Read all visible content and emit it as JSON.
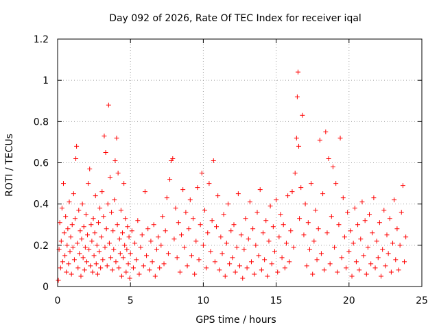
{
  "chart_data": {
    "type": "scatter",
    "title": "Day 092 of 2026, Rate Of TEC Index for receiver iqal",
    "xlabel": "GPS time / hours",
    "ylabel": "ROTI / TECUs",
    "xlim": [
      0,
      25
    ],
    "ylim": [
      0,
      1.2
    ],
    "xticks": [
      "0",
      "5",
      "10",
      "15",
      "20",
      "25"
    ],
    "yticks": [
      "0",
      "0.2",
      "0.4",
      "0.6",
      "0.8",
      "1",
      "1.2"
    ],
    "xtick_values": [
      0,
      5,
      10,
      15,
      20,
      25
    ],
    "ytick_values": [
      0,
      0.2,
      0.4,
      0.6,
      0.8,
      1.0,
      1.2
    ],
    "grid": true,
    "marker": "+",
    "color": "#ff0000",
    "series": [
      {
        "name": "ROTI",
        "points": [
          [
            0.05,
            0.03
          ],
          [
            0.1,
            0.18
          ],
          [
            0.15,
            0.31
          ],
          [
            0.2,
            0.09
          ],
          [
            0.25,
            0.22
          ],
          [
            0.3,
            0.38
          ],
          [
            0.35,
            0.12
          ],
          [
            0.4,
            0.5
          ],
          [
            0.45,
            0.26
          ],
          [
            0.5,
            0.15
          ],
          [
            0.55,
            0.34
          ],
          [
            0.6,
            0.07
          ],
          [
            0.65,
            0.2
          ],
          [
            0.7,
            0.28
          ],
          [
            0.75,
            0.11
          ],
          [
            0.8,
            0.41
          ],
          [
            0.85,
            0.17
          ],
          [
            0.9,
            0.24
          ],
          [
            0.95,
            0.06
          ],
          [
            1.0,
            0.3
          ],
          [
            1.05,
            0.19
          ],
          [
            1.1,
            0.45
          ],
          [
            1.15,
            0.13
          ],
          [
            1.2,
            0.33
          ],
          [
            1.25,
            0.62
          ],
          [
            1.3,
            0.68
          ],
          [
            1.35,
            0.21
          ],
          [
            1.4,
            0.09
          ],
          [
            1.45,
            0.37
          ],
          [
            1.5,
            0.16
          ],
          [
            1.55,
            0.27
          ],
          [
            1.6,
            0.05
          ],
          [
            1.65,
            0.23
          ],
          [
            1.7,
            0.4
          ],
          [
            1.75,
            0.14
          ],
          [
            1.8,
            0.29
          ],
          [
            1.85,
            0.08
          ],
          [
            1.9,
            0.19
          ],
          [
            1.95,
            0.35
          ],
          [
            2.0,
            0.12
          ],
          [
            2.05,
            0.25
          ],
          [
            2.1,
            0.5
          ],
          [
            2.15,
            0.18
          ],
          [
            2.2,
            0.57
          ],
          [
            2.25,
            0.1
          ],
          [
            2.3,
            0.3
          ],
          [
            2.35,
            0.22
          ],
          [
            2.4,
            0.07
          ],
          [
            2.45,
            0.33
          ],
          [
            2.5,
            0.15
          ],
          [
            2.55,
            0.26
          ],
          [
            2.6,
            0.44
          ],
          [
            2.65,
            0.11
          ],
          [
            2.7,
            0.2
          ],
          [
            2.75,
            0.06
          ],
          [
            2.8,
            0.31
          ],
          [
            2.85,
            0.17
          ],
          [
            2.9,
            0.38
          ],
          [
            2.95,
            0.09
          ],
          [
            3.0,
            0.24
          ],
          [
            3.05,
            0.46
          ],
          [
            3.1,
            0.13
          ],
          [
            3.15,
            0.34
          ],
          [
            3.2,
            0.73
          ],
          [
            3.25,
            0.19
          ],
          [
            3.3,
            0.65
          ],
          [
            3.35,
            0.28
          ],
          [
            3.4,
            0.1
          ],
          [
            3.45,
            0.4
          ],
          [
            3.5,
            0.88
          ],
          [
            3.55,
            0.21
          ],
          [
            3.6,
            0.53
          ],
          [
            3.65,
            0.14
          ],
          [
            3.7,
            0.36
          ],
          [
            3.75,
            0.08
          ],
          [
            3.8,
            0.27
          ],
          [
            3.85,
            0.18
          ],
          [
            3.9,
            0.42
          ],
          [
            3.95,
            0.61
          ],
          [
            4.0,
            0.12
          ],
          [
            4.05,
            0.72
          ],
          [
            4.1,
            0.3
          ],
          [
            4.15,
            0.55
          ],
          [
            4.2,
            0.09
          ],
          [
            4.25,
            0.23
          ],
          [
            4.3,
            0.16
          ],
          [
            4.35,
            0.37
          ],
          [
            4.4,
            0.05
          ],
          [
            4.45,
            0.26
          ],
          [
            4.5,
            0.14
          ],
          [
            4.55,
            0.5
          ],
          [
            4.6,
            0.2
          ],
          [
            4.65,
            0.33
          ],
          [
            4.7,
            0.07
          ],
          [
            4.75,
            0.18
          ],
          [
            4.8,
            0.29
          ],
          [
            4.85,
            0.11
          ],
          [
            4.9,
            0.24
          ],
          [
            4.95,
            0.04
          ],
          [
            5.0,
            0.16
          ],
          [
            5.1,
            0.27
          ],
          [
            5.2,
            0.09
          ],
          [
            5.3,
            0.21
          ],
          [
            5.4,
            0.13
          ],
          [
            5.5,
            0.32
          ],
          [
            5.6,
            0.06
          ],
          [
            5.7,
            0.19
          ],
          [
            5.8,
            0.25
          ],
          [
            5.9,
            0.1
          ],
          [
            6.0,
            0.46
          ],
          [
            6.1,
            0.15
          ],
          [
            6.2,
            0.28
          ],
          [
            6.3,
            0.08
          ],
          [
            6.4,
            0.22
          ],
          [
            6.5,
            0.12
          ],
          [
            6.6,
            0.3
          ],
          [
            6.7,
            0.05
          ],
          [
            6.8,
            0.18
          ],
          [
            6.9,
            0.24
          ],
          [
            7.0,
            0.09
          ],
          [
            7.1,
            0.2
          ],
          [
            7.2,
            0.34
          ],
          [
            7.3,
            0.11
          ],
          [
            7.4,
            0.27
          ],
          [
            7.5,
            0.43
          ],
          [
            7.6,
            0.16
          ],
          [
            7.7,
            0.52
          ],
          [
            7.8,
            0.61
          ],
          [
            7.9,
            0.62
          ],
          [
            8.0,
            0.23
          ],
          [
            8.1,
            0.38
          ],
          [
            8.2,
            0.14
          ],
          [
            8.3,
            0.31
          ],
          [
            8.4,
            0.07
          ],
          [
            8.5,
            0.25
          ],
          [
            8.6,
            0.47
          ],
          [
            8.7,
            0.19
          ],
          [
            8.8,
            0.36
          ],
          [
            8.9,
            0.1
          ],
          [
            9.0,
            0.28
          ],
          [
            9.1,
            0.42
          ],
          [
            9.2,
            0.15
          ],
          [
            9.3,
            0.33
          ],
          [
            9.4,
            0.06
          ],
          [
            9.5,
            0.22
          ],
          [
            9.6,
            0.48
          ],
          [
            9.7,
            0.13
          ],
          [
            9.8,
            0.3
          ],
          [
            9.9,
            0.55
          ],
          [
            10.0,
            0.2
          ],
          [
            10.1,
            0.37
          ],
          [
            10.2,
            0.09
          ],
          [
            10.3,
            0.26
          ],
          [
            10.4,
            0.5
          ],
          [
            10.5,
            0.17
          ],
          [
            10.6,
            0.32
          ],
          [
            10.7,
            0.61
          ],
          [
            10.8,
            0.12
          ],
          [
            10.9,
            0.29
          ],
          [
            11.0,
            0.44
          ],
          [
            11.1,
            0.08
          ],
          [
            11.2,
            0.24
          ],
          [
            11.3,
            0.16
          ],
          [
            11.4,
            0.35
          ],
          [
            11.5,
            0.05
          ],
          [
            11.6,
            0.21
          ],
          [
            11.7,
            0.4
          ],
          [
            11.8,
            0.11
          ],
          [
            11.9,
            0.27
          ],
          [
            12.0,
            0.14
          ],
          [
            12.1,
            0.3
          ],
          [
            12.2,
            0.07
          ],
          [
            12.3,
            0.19
          ],
          [
            12.4,
            0.45
          ],
          [
            12.5,
            0.1
          ],
          [
            12.6,
            0.25
          ],
          [
            12.7,
            0.04
          ],
          [
            12.8,
            0.18
          ],
          [
            12.9,
            0.33
          ],
          [
            13.0,
            0.09
          ],
          [
            13.1,
            0.23
          ],
          [
            13.2,
            0.41
          ],
          [
            13.3,
            0.12
          ],
          [
            13.4,
            0.28
          ],
          [
            13.5,
            0.06
          ],
          [
            13.6,
            0.2
          ],
          [
            13.7,
            0.36
          ],
          [
            13.8,
            0.15
          ],
          [
            13.9,
            0.47
          ],
          [
            14.0,
            0.08
          ],
          [
            14.1,
            0.26
          ],
          [
            14.2,
            0.13
          ],
          [
            14.3,
            0.32
          ],
          [
            14.4,
            0.05
          ],
          [
            14.5,
            0.22
          ],
          [
            14.6,
            0.39
          ],
          [
            14.7,
            0.11
          ],
          [
            14.8,
            0.29
          ],
          [
            14.9,
            0.17
          ],
          [
            15.0,
            0.42
          ],
          [
            15.1,
            0.07
          ],
          [
            15.2,
            0.24
          ],
          [
            15.3,
            0.35
          ],
          [
            15.4,
            0.14
          ],
          [
            15.5,
            0.3
          ],
          [
            15.6,
            0.09
          ],
          [
            15.7,
            0.21
          ],
          [
            15.8,
            0.44
          ],
          [
            15.9,
            0.12
          ],
          [
            16.0,
            0.27
          ],
          [
            16.1,
            0.46
          ],
          [
            16.2,
            0.19
          ],
          [
            16.3,
            0.55
          ],
          [
            16.4,
            0.72
          ],
          [
            16.45,
            0.92
          ],
          [
            16.5,
            1.04
          ],
          [
            16.55,
            0.68
          ],
          [
            16.6,
            0.33
          ],
          [
            16.7,
            0.48
          ],
          [
            16.8,
            0.83
          ],
          [
            16.9,
            0.25
          ],
          [
            17.0,
            0.4
          ],
          [
            17.1,
            0.1
          ],
          [
            17.2,
            0.31
          ],
          [
            17.3,
            0.18
          ],
          [
            17.4,
            0.5
          ],
          [
            17.5,
            0.06
          ],
          [
            17.6,
            0.22
          ],
          [
            17.7,
            0.37
          ],
          [
            17.8,
            0.13
          ],
          [
            17.9,
            0.28
          ],
          [
            18.0,
            0.71
          ],
          [
            18.1,
            0.16
          ],
          [
            18.2,
            0.45
          ],
          [
            18.3,
            0.08
          ],
          [
            18.4,
            0.75
          ],
          [
            18.5,
            0.26
          ],
          [
            18.6,
            0.62
          ],
          [
            18.7,
            0.11
          ],
          [
            18.8,
            0.34
          ],
          [
            18.9,
            0.58
          ],
          [
            19.0,
            0.19
          ],
          [
            19.1,
            0.5
          ],
          [
            19.2,
            0.07
          ],
          [
            19.3,
            0.3
          ],
          [
            19.4,
            0.72
          ],
          [
            19.5,
            0.14
          ],
          [
            19.6,
            0.43
          ],
          [
            19.7,
            0.24
          ],
          [
            19.8,
            0.09
          ],
          [
            19.9,
            0.36
          ],
          [
            20.0,
            0.17
          ],
          [
            20.1,
            0.27
          ],
          [
            20.2,
            0.05
          ],
          [
            20.3,
            0.21
          ],
          [
            20.4,
            0.38
          ],
          [
            20.5,
            0.12
          ],
          [
            20.6,
            0.3
          ],
          [
            20.7,
            0.08
          ],
          [
            20.8,
            0.23
          ],
          [
            20.9,
            0.41
          ],
          [
            21.0,
            0.15
          ],
          [
            21.1,
            0.32
          ],
          [
            21.2,
            0.06
          ],
          [
            21.3,
            0.19
          ],
          [
            21.4,
            0.35
          ],
          [
            21.5,
            0.11
          ],
          [
            21.6,
            0.26
          ],
          [
            21.7,
            0.43
          ],
          [
            21.8,
            0.09
          ],
          [
            21.9,
            0.22
          ],
          [
            22.0,
            0.14
          ],
          [
            22.1,
            0.31
          ],
          [
            22.2,
            0.05
          ],
          [
            22.3,
            0.18
          ],
          [
            22.4,
            0.37
          ],
          [
            22.5,
            0.1
          ],
          [
            22.6,
            0.25
          ],
          [
            22.7,
            0.16
          ],
          [
            22.8,
            0.33
          ],
          [
            22.9,
            0.07
          ],
          [
            23.0,
            0.21
          ],
          [
            23.1,
            0.42
          ],
          [
            23.2,
            0.13
          ],
          [
            23.3,
            0.28
          ],
          [
            23.4,
            0.08
          ],
          [
            23.5,
            0.2
          ],
          [
            23.6,
            0.36
          ],
          [
            23.7,
            0.49
          ],
          [
            23.8,
            0.12
          ],
          [
            23.9,
            0.24
          ]
        ]
      }
    ]
  }
}
